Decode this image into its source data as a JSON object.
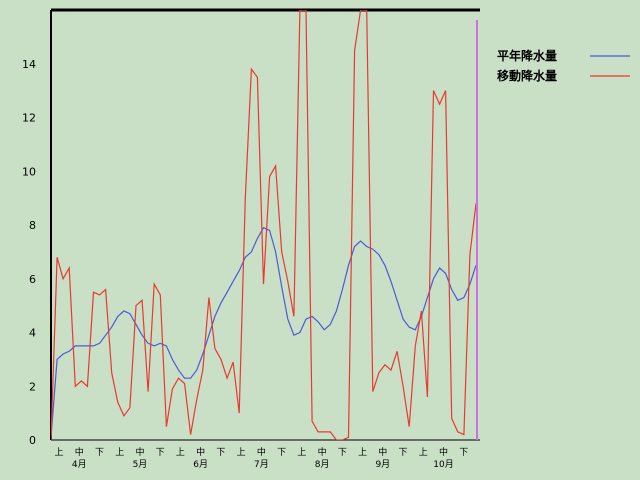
{
  "chart_data": {
    "type": "line",
    "ylim": [
      0,
      16
    ],
    "yticks": [
      0,
      2,
      4,
      6,
      8,
      10,
      12,
      14
    ],
    "grid": false,
    "legend_position": "top-right",
    "month_labels": [
      "4月",
      "5月",
      "6月",
      "7月",
      "8月",
      "9月",
      "10月"
    ],
    "period_labels": [
      "上",
      "中",
      "下"
    ],
    "x_count": 71,
    "series": [
      {
        "name": "平年降水量",
        "color": "#4b5bd6",
        "values": [
          0.1,
          3.0,
          3.2,
          3.3,
          3.5,
          3.5,
          3.5,
          3.5,
          3.6,
          3.9,
          4.2,
          4.6,
          4.8,
          4.7,
          4.3,
          3.9,
          3.6,
          3.5,
          3.6,
          3.5,
          3.0,
          2.6,
          2.3,
          2.3,
          2.6,
          3.2,
          3.9,
          4.6,
          5.1,
          5.5,
          5.9,
          6.3,
          6.8,
          7.0,
          7.5,
          7.9,
          7.8,
          7.0,
          5.7,
          4.5,
          3.9,
          4.0,
          4.5,
          4.6,
          4.4,
          4.1,
          4.3,
          4.8,
          5.6,
          6.5,
          7.2,
          7.4,
          7.2,
          7.1,
          6.9,
          6.5,
          5.9,
          5.2,
          4.5,
          4.2,
          4.1,
          4.6,
          5.3,
          6.0,
          6.4,
          6.2,
          5.6,
          5.2,
          5.3,
          5.8,
          6.5
        ]
      },
      {
        "name": "移動降水量",
        "color": "#e83a30",
        "values": [
          0.0,
          6.8,
          6.0,
          6.4,
          2.0,
          2.2,
          2.0,
          5.5,
          5.4,
          5.6,
          2.5,
          1.4,
          0.9,
          1.2,
          5.0,
          5.2,
          1.8,
          5.8,
          5.4,
          0.5,
          1.9,
          2.3,
          2.1,
          0.2,
          1.5,
          2.6,
          5.3,
          3.4,
          3.0,
          2.3,
          2.9,
          1.0,
          9.0,
          13.8,
          13.5,
          5.8,
          9.8,
          10.2,
          7.0,
          5.9,
          4.6,
          16.0,
          16.0,
          0.7,
          0.3,
          0.3,
          0.3,
          0.0,
          0.0,
          0.1,
          14.5,
          17.0,
          17.0,
          1.8,
          2.5,
          2.8,
          2.6,
          3.3,
          2.0,
          0.5,
          3.5,
          4.8,
          1.6,
          13.0,
          12.5,
          13.0,
          0.8,
          0.3,
          0.2,
          6.9,
          8.8
        ]
      }
    ]
  }
}
